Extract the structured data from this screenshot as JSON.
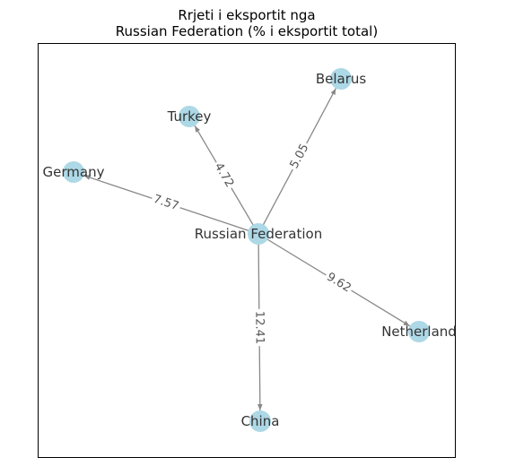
{
  "title": {
    "line1": "Rrjeti i eksportit nga",
    "line2": "Russian Federation (% i eksportit total)"
  },
  "colors": {
    "node_fill": "#add8e6",
    "edge": "#888888",
    "node_text": "#333333",
    "edge_text": "#555555",
    "frame": "#000000"
  },
  "network": {
    "source": "Russian Federation",
    "nodes": [
      "Russian Federation",
      "Belarus",
      "Turkey",
      "Germany",
      "Netherland",
      "China"
    ],
    "edges": [
      {
        "from": "Russian Federation",
        "to": "Belarus",
        "value": "5.05"
      },
      {
        "from": "Russian Federation",
        "to": "Turkey",
        "value": "4.72"
      },
      {
        "from": "Russian Federation",
        "to": "Germany",
        "value": "7.57"
      },
      {
        "from": "Russian Federation",
        "to": "Netherland",
        "value": "9.62"
      },
      {
        "from": "Russian Federation",
        "to": "China",
        "value": "12.41"
      }
    ]
  }
}
